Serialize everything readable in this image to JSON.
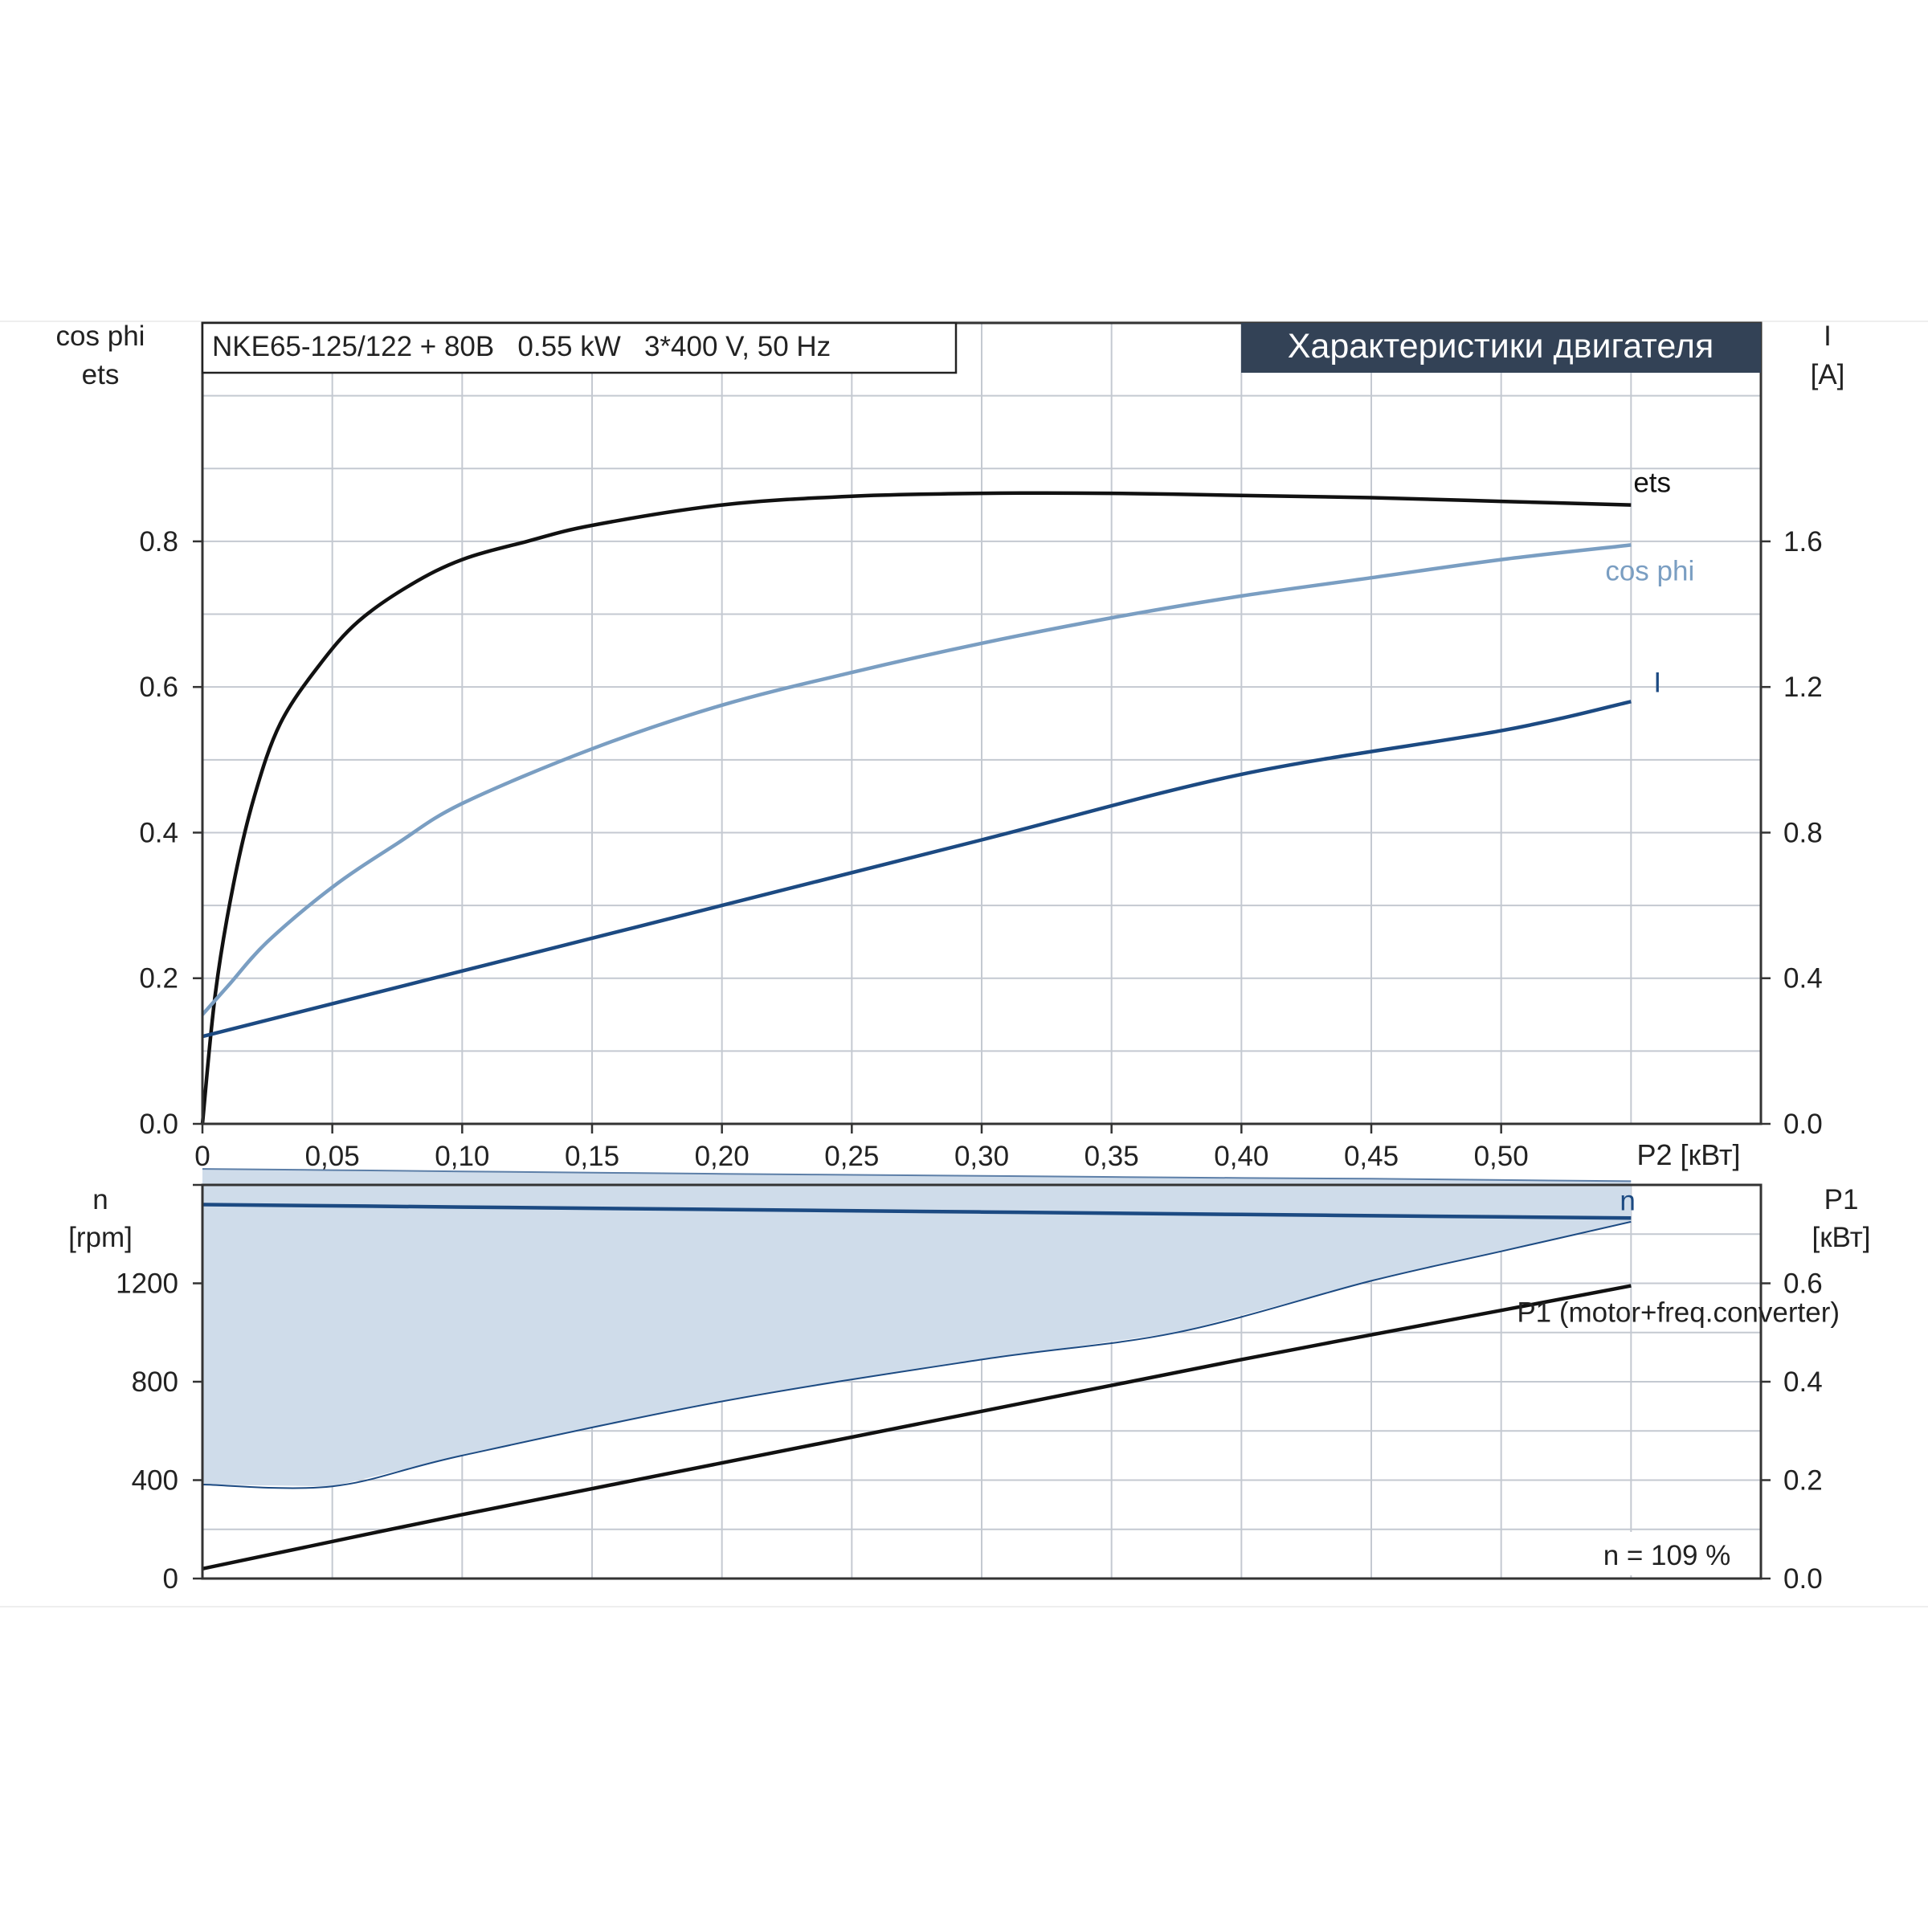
{
  "header": {
    "model_info": "NKE65-125/122 + 80B   0.55 kW   3*400 V, 50 Hz",
    "badge_title": "Характеристики двигателя"
  },
  "top_panel": {
    "left_axis_label_line1": "cos phi",
    "left_axis_label_line2": "ets",
    "right_axis_label_line1": "I",
    "right_axis_label_line2": "[A]",
    "x_axis_label": "P2 [кВт]"
  },
  "bottom_panel": {
    "left_axis_label_line1": "n",
    "left_axis_label_line2": "[rpm]",
    "right_axis_label_line1": "P1",
    "right_axis_label_line2": "[кВт]",
    "speed_note": "n = 109 %"
  },
  "colors": {
    "ets": "#111111",
    "cos_phi": "#7a9ec2",
    "current": "#1c4a82",
    "speed": "#1c4a82",
    "p1": "#111111",
    "band_fill": "#cfdcea",
    "grid": "#c4c9d1",
    "badge_bg": "#334256"
  },
  "chart_data": [
    {
      "type": "line",
      "x_label": "P2 [кВт]",
      "xlim": [
        0,
        0.6
      ],
      "x_ticks": [
        "0",
        "0,05",
        "0,10",
        "0,15",
        "0,20",
        "0,25",
        "0,30",
        "0,35",
        "0,40",
        "0,45",
        "0,50"
      ],
      "x_tick_values": [
        0,
        0.05,
        0.1,
        0.15,
        0.2,
        0.25,
        0.3,
        0.35,
        0.4,
        0.45,
        0.5
      ],
      "left_axis": {
        "label": "cos phi / ets",
        "ylim": [
          0,
          1.1
        ],
        "ticks": [
          "0.0",
          "0.2",
          "0.4",
          "0.6",
          "0.8"
        ],
        "tick_values": [
          0,
          0.2,
          0.4,
          0.6,
          0.8
        ]
      },
      "right_axis": {
        "label": "I [A]",
        "ylim": [
          0,
          2.2
        ],
        "ticks": [
          "0.0",
          "0.4",
          "0.8",
          "1.2",
          "1.6"
        ],
        "tick_values": [
          0,
          0.4,
          0.8,
          1.2,
          1.6
        ]
      },
      "grid": true,
      "series": [
        {
          "name": "ets",
          "axis": "left",
          "x": [
            0,
            0.005,
            0.012,
            0.02,
            0.03,
            0.045,
            0.06,
            0.08,
            0.1,
            0.125,
            0.15,
            0.2,
            0.25,
            0.3,
            0.35,
            0.4,
            0.45,
            0.5,
            0.55
          ],
          "y": [
            0,
            0.18,
            0.33,
            0.45,
            0.55,
            0.63,
            0.69,
            0.74,
            0.775,
            0.8,
            0.822,
            0.85,
            0.862,
            0.866,
            0.866,
            0.863,
            0.86,
            0.855,
            0.85
          ]
        },
        {
          "name": "cos phi",
          "axis": "left",
          "x": [
            0,
            0.01,
            0.025,
            0.05,
            0.075,
            0.1,
            0.15,
            0.2,
            0.25,
            0.3,
            0.35,
            0.4,
            0.45,
            0.5,
            0.55
          ],
          "y": [
            0.15,
            0.19,
            0.25,
            0.325,
            0.385,
            0.44,
            0.515,
            0.575,
            0.62,
            0.66,
            0.695,
            0.725,
            0.75,
            0.775,
            0.795
          ]
        },
        {
          "name": "I",
          "axis": "right",
          "x": [
            0,
            0.1,
            0.2,
            0.3,
            0.4,
            0.5,
            0.55
          ],
          "y": [
            0.24,
            0.42,
            0.6,
            0.78,
            0.96,
            1.08,
            1.16
          ]
        }
      ]
    },
    {
      "type": "area",
      "xlim": [
        0,
        0.6
      ],
      "left_axis": {
        "label": "n [rpm]",
        "ylim": [
          0,
          1600
        ],
        "ticks": [
          "0",
          "400",
          "800",
          "1200"
        ],
        "tick_values": [
          0,
          400,
          800,
          1200
        ]
      },
      "right_axis": {
        "label": "P1 [кВт]",
        "ylim": [
          0,
          0.8
        ],
        "ticks": [
          "0.0",
          "0.2",
          "0.4",
          "0.6"
        ],
        "tick_values": [
          0,
          0.2,
          0.4,
          0.6
        ]
      },
      "grid": true,
      "series": [
        {
          "name": "n",
          "axis": "left",
          "x": [
            0,
            0.1,
            0.2,
            0.3,
            0.4,
            0.5,
            0.55
          ],
          "y": [
            1520,
            1510,
            1500,
            1490,
            1480,
            1470,
            1465
          ]
        },
        {
          "name": "P1 (motor+freq.converter)",
          "axis": "right",
          "x": [
            0,
            0.1,
            0.2,
            0.3,
            0.4,
            0.5,
            0.55
          ],
          "y": [
            0.02,
            0.13,
            0.235,
            0.34,
            0.445,
            0.545,
            0.595
          ]
        }
      ],
      "band": {
        "x": [
          0,
          0.05,
          0.1,
          0.2,
          0.3,
          0.375,
          0.45,
          0.5,
          0.55
        ],
        "upper": [
          1665,
          1660,
          1655,
          1645,
          1637,
          1630,
          1625,
          1620,
          1615
        ],
        "lower": [
          382,
          375,
          500,
          720,
          890,
          1000,
          1210,
          1330,
          1450
        ]
      }
    }
  ]
}
